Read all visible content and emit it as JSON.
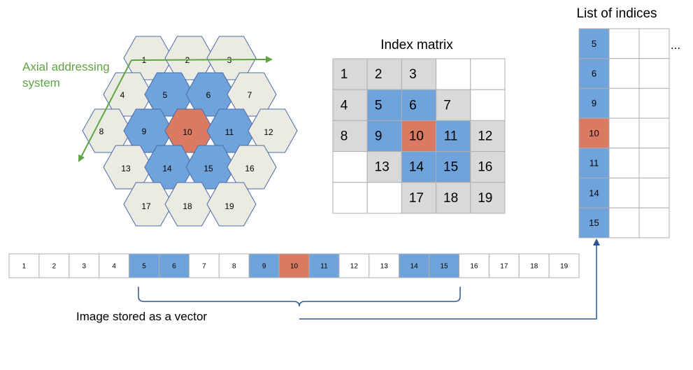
{
  "colors": {
    "beige": "#ECEBE2",
    "blue": "#6FA3DB",
    "red": "#DB7A62",
    "gray": "#D9D9D9",
    "white": "#FFFFFF",
    "green": "#5FA443",
    "dark_blue": "#2F5597",
    "hex_stroke": "#4A68A8",
    "cell_stroke": "#AFAFAF",
    "text": "#000000"
  },
  "hex_grid": {
    "axial_label_line1": "Axial addressing",
    "axial_label_line2": "system",
    "cells": [
      {
        "label": "1",
        "color": "beige"
      },
      {
        "label": "2",
        "color": "beige"
      },
      {
        "label": "3",
        "color": "beige"
      },
      {
        "label": "4",
        "color": "beige"
      },
      {
        "label": "5",
        "color": "blue"
      },
      {
        "label": "6",
        "color": "blue"
      },
      {
        "label": "7",
        "color": "beige"
      },
      {
        "label": "8",
        "color": "beige"
      },
      {
        "label": "9",
        "color": "blue"
      },
      {
        "label": "10",
        "color": "red"
      },
      {
        "label": "11",
        "color": "blue"
      },
      {
        "label": "12",
        "color": "beige"
      },
      {
        "label": "13",
        "color": "beige"
      },
      {
        "label": "14",
        "color": "blue"
      },
      {
        "label": "15",
        "color": "blue"
      },
      {
        "label": "16",
        "color": "beige"
      },
      {
        "label": "17",
        "color": "beige"
      },
      {
        "label": "18",
        "color": "beige"
      },
      {
        "label": "19",
        "color": "beige"
      }
    ]
  },
  "index_matrix": {
    "title": "Index matrix",
    "rows": [
      [
        {
          "label": "1",
          "color": "gray"
        },
        {
          "label": "2",
          "color": "gray"
        },
        {
          "label": "3",
          "color": "gray"
        },
        {
          "label": "",
          "color": "white"
        },
        {
          "label": "",
          "color": "white"
        }
      ],
      [
        {
          "label": "4",
          "color": "gray"
        },
        {
          "label": "5",
          "color": "blue"
        },
        {
          "label": "6",
          "color": "blue"
        },
        {
          "label": "7",
          "color": "gray"
        },
        {
          "label": "",
          "color": "white"
        }
      ],
      [
        {
          "label": "8",
          "color": "gray"
        },
        {
          "label": "9",
          "color": "blue"
        },
        {
          "label": "10",
          "color": "red"
        },
        {
          "label": "11",
          "color": "blue"
        },
        {
          "label": "12",
          "color": "gray"
        }
      ],
      [
        {
          "label": "",
          "color": "white"
        },
        {
          "label": "13",
          "color": "gray"
        },
        {
          "label": "14",
          "color": "blue"
        },
        {
          "label": "15",
          "color": "blue"
        },
        {
          "label": "16",
          "color": "gray"
        }
      ],
      [
        {
          "label": "",
          "color": "white"
        },
        {
          "label": "",
          "color": "white"
        },
        {
          "label": "17",
          "color": "gray"
        },
        {
          "label": "18",
          "color": "gray"
        },
        {
          "label": "19",
          "color": "gray"
        }
      ]
    ]
  },
  "indices_list": {
    "title": "List of indices",
    "ellipsis": "...",
    "items": [
      {
        "label": "5",
        "color": "blue"
      },
      {
        "label": "6",
        "color": "blue"
      },
      {
        "label": "9",
        "color": "blue"
      },
      {
        "label": "10",
        "color": "red"
      },
      {
        "label": "11",
        "color": "blue"
      },
      {
        "label": "14",
        "color": "blue"
      },
      {
        "label": "15",
        "color": "blue"
      }
    ]
  },
  "vector": {
    "caption": "Image stored as a vector",
    "cells": [
      {
        "label": "1",
        "color": "white"
      },
      {
        "label": "2",
        "color": "white"
      },
      {
        "label": "3",
        "color": "white"
      },
      {
        "label": "4",
        "color": "white"
      },
      {
        "label": "5",
        "color": "blue"
      },
      {
        "label": "6",
        "color": "blue"
      },
      {
        "label": "7",
        "color": "white"
      },
      {
        "label": "8",
        "color": "white"
      },
      {
        "label": "9",
        "color": "blue"
      },
      {
        "label": "10",
        "color": "red"
      },
      {
        "label": "11",
        "color": "blue"
      },
      {
        "label": "12",
        "color": "white"
      },
      {
        "label": "13",
        "color": "white"
      },
      {
        "label": "14",
        "color": "blue"
      },
      {
        "label": "15",
        "color": "blue"
      },
      {
        "label": "16",
        "color": "white"
      },
      {
        "label": "17",
        "color": "white"
      },
      {
        "label": "18",
        "color": "white"
      },
      {
        "label": "19",
        "color": "white"
      }
    ]
  }
}
